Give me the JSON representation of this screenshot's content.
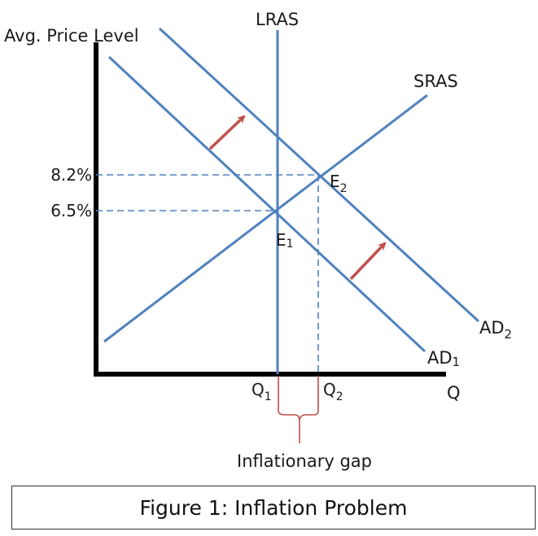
{
  "diagram": {
    "y_axis_label": "Avg. Price Level",
    "x_axis_label": "Q",
    "curves": {
      "lras": "LRAS",
      "sras": "SRAS",
      "ad1": {
        "main": "AD",
        "sub": "1"
      },
      "ad2": {
        "main": "AD",
        "sub": "2"
      }
    },
    "price_levels": {
      "p2": "8.2%",
      "p1": "6.5%"
    },
    "equilibria": {
      "e1": {
        "main": "E",
        "sub": "1"
      },
      "e2": {
        "main": "E",
        "sub": "2"
      }
    },
    "quantities": {
      "q1": {
        "main": "Q",
        "sub": "1"
      },
      "q2": {
        "main": "Q",
        "sub": "2"
      }
    },
    "gap_label": "Inflationary gap",
    "colors": {
      "curve": "#4f81bd",
      "shift_arrow": "#c0504d",
      "axis": "#000000",
      "brace": "#c0504d"
    }
  },
  "caption": "Figure 1: Inflation Problem"
}
